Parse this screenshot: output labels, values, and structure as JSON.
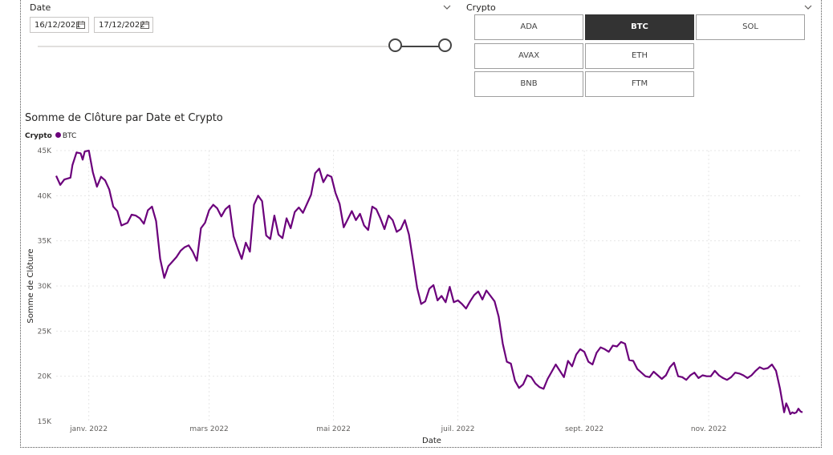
{
  "date_slicer": {
    "title": "Date",
    "start": "16/12/2021",
    "end": "17/12/2022",
    "range_fraction": [
      0.88,
      1.0
    ]
  },
  "crypto_slicer": {
    "title": "Crypto",
    "tiles": [
      {
        "label": "ADA",
        "selected": false
      },
      {
        "label": "BTC",
        "selected": true
      },
      {
        "label": "SOL",
        "selected": false
      },
      {
        "label": "AVAX",
        "selected": false
      },
      {
        "label": "ETH",
        "selected": false
      },
      {
        "label": "BNB",
        "selected": false
      },
      {
        "label": "FTM",
        "selected": false
      }
    ]
  },
  "chart": {
    "title": "Somme de Clôture par Date et Crypto",
    "legend_title": "Crypto",
    "legend_item": "BTC"
  },
  "colors": {
    "series": "#6b007b",
    "selected_tile": "#333333"
  },
  "chart_data": {
    "type": "line",
    "title": "Somme de Clôture par Date et Crypto",
    "xlabel": "Date",
    "ylabel": "Somme de Clôture",
    "ylim": [
      15000,
      45000
    ],
    "xlim": [
      "2021-12-16",
      "2022-12-17"
    ],
    "x_ticks": [
      {
        "date": "2022-01-01",
        "label": "janv. 2022"
      },
      {
        "date": "2022-03-01",
        "label": "mars 2022"
      },
      {
        "date": "2022-05-01",
        "label": "mai 2022"
      },
      {
        "date": "2022-07-01",
        "label": "juil. 2022"
      },
      {
        "date": "2022-09-01",
        "label": "sept. 2022"
      },
      {
        "date": "2022-11-01",
        "label": "nov. 2022"
      }
    ],
    "y_ticks": [
      {
        "value": 15000,
        "label": "15K"
      },
      {
        "value": 20000,
        "label": "20K"
      },
      {
        "value": 25000,
        "label": "25K"
      },
      {
        "value": 30000,
        "label": "30K"
      },
      {
        "value": 35000,
        "label": "35K"
      },
      {
        "value": 40000,
        "label": "40K"
      },
      {
        "value": 45000,
        "label": "45K"
      }
    ],
    "grid": true,
    "legend": "top-left",
    "series": [
      {
        "name": "BTC",
        "points": [
          [
            "2021-12-16",
            42200
          ],
          [
            "2021-12-18",
            41200
          ],
          [
            "2021-12-20",
            41800
          ],
          [
            "2021-12-23",
            42000
          ],
          [
            "2021-12-24",
            43400
          ],
          [
            "2021-12-26",
            44800
          ],
          [
            "2021-12-28",
            44700
          ],
          [
            "2021-12-29",
            44000
          ],
          [
            "2021-12-30",
            44900
          ],
          [
            "2022-01-01",
            45000
          ],
          [
            "2022-01-03",
            42600
          ],
          [
            "2022-01-05",
            41000
          ],
          [
            "2022-01-07",
            42100
          ],
          [
            "2022-01-09",
            41700
          ],
          [
            "2022-01-11",
            40700
          ],
          [
            "2022-01-13",
            38800
          ],
          [
            "2022-01-15",
            38300
          ],
          [
            "2022-01-17",
            36700
          ],
          [
            "2022-01-20",
            37000
          ],
          [
            "2022-01-22",
            37900
          ],
          [
            "2022-01-24",
            37800
          ],
          [
            "2022-01-26",
            37500
          ],
          [
            "2022-01-28",
            36900
          ],
          [
            "2022-01-30",
            38400
          ],
          [
            "2022-02-01",
            38800
          ],
          [
            "2022-02-03",
            37200
          ],
          [
            "2022-02-05",
            33000
          ],
          [
            "2022-02-07",
            30900
          ],
          [
            "2022-02-09",
            32200
          ],
          [
            "2022-02-11",
            32700
          ],
          [
            "2022-02-13",
            33200
          ],
          [
            "2022-02-15",
            33900
          ],
          [
            "2022-02-17",
            34300
          ],
          [
            "2022-02-19",
            34500
          ],
          [
            "2022-02-21",
            33800
          ],
          [
            "2022-02-23",
            32800
          ],
          [
            "2022-02-25",
            36400
          ],
          [
            "2022-02-27",
            37000
          ],
          [
            "2022-03-01",
            38400
          ],
          [
            "2022-03-03",
            39000
          ],
          [
            "2022-03-05",
            38600
          ],
          [
            "2022-03-07",
            37700
          ],
          [
            "2022-03-09",
            38500
          ],
          [
            "2022-03-11",
            38900
          ],
          [
            "2022-03-13",
            35500
          ],
          [
            "2022-03-15",
            34200
          ],
          [
            "2022-03-17",
            33000
          ],
          [
            "2022-03-19",
            34800
          ],
          [
            "2022-03-21",
            33800
          ],
          [
            "2022-03-23",
            39000
          ],
          [
            "2022-03-25",
            40000
          ],
          [
            "2022-03-27",
            39400
          ],
          [
            "2022-03-29",
            35600
          ],
          [
            "2022-03-31",
            35200
          ],
          [
            "2022-04-02",
            37800
          ],
          [
            "2022-04-04",
            35700
          ],
          [
            "2022-04-06",
            35300
          ],
          [
            "2022-04-08",
            37500
          ],
          [
            "2022-04-10",
            36400
          ],
          [
            "2022-04-12",
            38200
          ],
          [
            "2022-04-14",
            38700
          ],
          [
            "2022-04-16",
            38100
          ],
          [
            "2022-04-18",
            39100
          ],
          [
            "2022-04-20",
            40100
          ],
          [
            "2022-04-22",
            42500
          ],
          [
            "2022-04-24",
            43000
          ],
          [
            "2022-04-26",
            41500
          ],
          [
            "2022-04-28",
            42300
          ],
          [
            "2022-04-30",
            42100
          ],
          [
            "2022-05-02",
            40300
          ],
          [
            "2022-05-04",
            39100
          ],
          [
            "2022-05-06",
            36500
          ],
          [
            "2022-05-08",
            37400
          ],
          [
            "2022-05-10",
            38300
          ],
          [
            "2022-05-12",
            37300
          ],
          [
            "2022-05-14",
            38000
          ],
          [
            "2022-05-16",
            36700
          ],
          [
            "2022-05-18",
            36200
          ],
          [
            "2022-05-20",
            38800
          ],
          [
            "2022-05-22",
            38500
          ],
          [
            "2022-05-24",
            37500
          ],
          [
            "2022-05-26",
            36300
          ],
          [
            "2022-05-28",
            37800
          ],
          [
            "2022-05-30",
            37300
          ],
          [
            "2022-06-01",
            36000
          ],
          [
            "2022-06-03",
            36300
          ],
          [
            "2022-06-05",
            37300
          ],
          [
            "2022-06-07",
            35700
          ],
          [
            "2022-06-09",
            32800
          ],
          [
            "2022-06-11",
            29800
          ],
          [
            "2022-06-13",
            28000
          ],
          [
            "2022-06-15",
            28300
          ],
          [
            "2022-06-17",
            29700
          ],
          [
            "2022-06-19",
            30100
          ],
          [
            "2022-06-21",
            28400
          ],
          [
            "2022-06-23",
            28900
          ],
          [
            "2022-06-25",
            28200
          ],
          [
            "2022-06-27",
            29900
          ],
          [
            "2022-06-29",
            28200
          ],
          [
            "2022-07-01",
            28400
          ],
          [
            "2022-07-03",
            28000
          ],
          [
            "2022-07-05",
            27500
          ],
          [
            "2022-07-07",
            28300
          ],
          [
            "2022-07-09",
            29000
          ],
          [
            "2022-07-11",
            29400
          ],
          [
            "2022-07-13",
            28500
          ],
          [
            "2022-07-15",
            29500
          ],
          [
            "2022-07-17",
            28900
          ],
          [
            "2022-07-19",
            28300
          ],
          [
            "2022-07-21",
            26600
          ],
          [
            "2022-07-23",
            23600
          ],
          [
            "2022-07-25",
            21600
          ],
          [
            "2022-07-27",
            21400
          ],
          [
            "2022-07-29",
            19500
          ],
          [
            "2022-07-31",
            18700
          ],
          [
            "2022-08-02",
            19100
          ],
          [
            "2022-08-04",
            20100
          ],
          [
            "2022-08-06",
            19900
          ],
          [
            "2022-08-08",
            19200
          ],
          [
            "2022-08-10",
            18800
          ],
          [
            "2022-08-12",
            18600
          ],
          [
            "2022-08-14",
            19700
          ],
          [
            "2022-08-16",
            20500
          ],
          [
            "2022-08-18",
            21300
          ],
          [
            "2022-08-20",
            20600
          ],
          [
            "2022-08-22",
            19900
          ],
          [
            "2022-08-24",
            21700
          ],
          [
            "2022-08-26",
            21100
          ],
          [
            "2022-08-28",
            22400
          ],
          [
            "2022-08-30",
            23000
          ],
          [
            "2022-09-01",
            22700
          ],
          [
            "2022-09-03",
            21600
          ],
          [
            "2022-09-05",
            21300
          ],
          [
            "2022-09-07",
            22600
          ],
          [
            "2022-09-09",
            23200
          ],
          [
            "2022-09-11",
            23000
          ],
          [
            "2022-09-13",
            22700
          ],
          [
            "2022-09-15",
            23400
          ],
          [
            "2022-09-17",
            23300
          ],
          [
            "2022-09-19",
            23800
          ],
          [
            "2022-09-21",
            23600
          ],
          [
            "2022-09-23",
            21800
          ],
          [
            "2022-09-25",
            21700
          ],
          [
            "2022-09-27",
            20800
          ],
          [
            "2022-09-29",
            20400
          ],
          [
            "2022-10-01",
            20000
          ],
          [
            "2022-10-03",
            19900
          ],
          [
            "2022-10-05",
            20500
          ],
          [
            "2022-10-07",
            20100
          ],
          [
            "2022-10-09",
            19700
          ],
          [
            "2022-10-11",
            20100
          ],
          [
            "2022-10-13",
            21000
          ],
          [
            "2022-10-15",
            21500
          ],
          [
            "2022-10-17",
            20000
          ],
          [
            "2022-10-19",
            19900
          ],
          [
            "2022-10-21",
            19600
          ],
          [
            "2022-10-23",
            20100
          ],
          [
            "2022-10-25",
            20400
          ],
          [
            "2022-10-27",
            19800
          ],
          [
            "2022-10-29",
            20100
          ],
          [
            "2022-10-31",
            20000
          ],
          [
            "2022-11-02",
            20000
          ],
          [
            "2022-11-04",
            20600
          ],
          [
            "2022-11-06",
            20100
          ],
          [
            "2022-11-08",
            19800
          ],
          [
            "2022-11-10",
            19600
          ],
          [
            "2022-11-12",
            19900
          ],
          [
            "2022-11-14",
            20400
          ],
          [
            "2022-11-16",
            20300
          ],
          [
            "2022-11-18",
            20100
          ],
          [
            "2022-11-20",
            19800
          ],
          [
            "2022-11-22",
            20100
          ],
          [
            "2022-11-24",
            20600
          ],
          [
            "2022-11-26",
            21000
          ],
          [
            "2022-11-28",
            20800
          ],
          [
            "2022-11-30",
            20900
          ],
          [
            "2022-12-02",
            21300
          ],
          [
            "2022-12-04",
            20600
          ],
          [
            "2022-12-06",
            18600
          ],
          [
            "2022-12-08",
            16000
          ],
          [
            "2022-12-09",
            17000
          ],
          [
            "2022-12-10",
            16500
          ],
          [
            "2022-12-11",
            15800
          ],
          [
            "2022-12-12",
            16000
          ],
          [
            "2022-12-13",
            15900
          ],
          [
            "2022-12-14",
            16000
          ],
          [
            "2022-12-15",
            16400
          ],
          [
            "2022-12-16",
            16100
          ],
          [
            "2022-12-17",
            16000
          ]
        ]
      }
    ]
  }
}
